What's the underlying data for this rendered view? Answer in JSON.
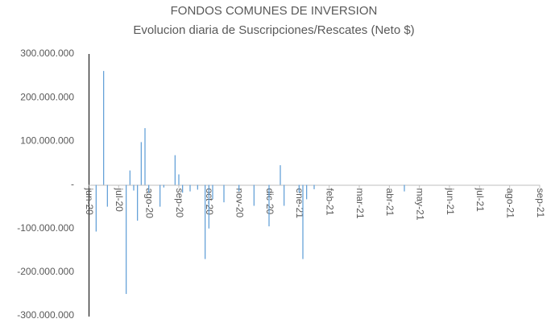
{
  "chart_data": {
    "type": "bar",
    "title": "FONDOS COMUNES DE INVERSION",
    "subtitle": "Evolucion diaria de Suscripciones/Rescates (Neto $)",
    "color": "#5b9bd5",
    "grid": false,
    "ylim": [
      -300000000,
      300000000
    ],
    "yticks": [
      {
        "value": 300000000,
        "label": "300.000.000"
      },
      {
        "value": 200000000,
        "label": "200.000.000"
      },
      {
        "value": 100000000,
        "label": "100.000.000"
      },
      {
        "value": 0,
        "label": "-"
      },
      {
        "value": -100000000,
        "label": "-100.000.000"
      },
      {
        "value": -200000000,
        "label": "-200.000.000"
      },
      {
        "value": -300000000,
        "label": "-300.000.000"
      }
    ],
    "categories": [
      "jun-20",
      null,
      null,
      null,
      null,
      null,
      null,
      null,
      "jul-20",
      null,
      null,
      null,
      null,
      null,
      null,
      null,
      "ago-20",
      null,
      null,
      null,
      null,
      null,
      null,
      null,
      "sep-20",
      null,
      null,
      null,
      null,
      null,
      null,
      null,
      "oct-20",
      null,
      null,
      null,
      null,
      null,
      null,
      null,
      "nov-20",
      null,
      null,
      null,
      null,
      null,
      null,
      null,
      "dic-20",
      null,
      null,
      null,
      null,
      null,
      null,
      null,
      "ene-21",
      null,
      null,
      null,
      null,
      null,
      null,
      null,
      "feb-21",
      null,
      null,
      null,
      null,
      null,
      null,
      null,
      "mar-21",
      null,
      null,
      null,
      null,
      null,
      null,
      null,
      "abr-21",
      null,
      null,
      null,
      null,
      null,
      null,
      null,
      "may-21",
      null,
      null,
      null,
      null,
      null,
      null,
      null,
      "jun-21",
      null,
      null,
      null,
      null,
      null,
      null,
      null,
      "jul-21",
      null,
      null,
      null,
      null,
      null,
      null,
      null,
      "ago-21",
      null,
      null,
      null,
      null,
      null,
      null,
      null,
      "sep-21"
    ],
    "values": [
      null,
      null,
      -107000000,
      null,
      261000000,
      -50000000,
      null,
      null,
      null,
      null,
      -250000000,
      33000000,
      -13000000,
      -82000000,
      98000000,
      130000000,
      -18000000,
      null,
      null,
      -50000000,
      -6000000,
      null,
      null,
      68000000,
      24000000,
      -18000000,
      null,
      -15000000,
      null,
      -11000000,
      null,
      -170000000,
      -100000000,
      -33000000,
      null,
      null,
      -40000000,
      null,
      null,
      null,
      -15000000,
      null,
      null,
      null,
      -48000000,
      null,
      null,
      null,
      -95000000,
      null,
      null,
      45000000,
      -48000000,
      null,
      null,
      null,
      -18000000,
      -170000000,
      -33000000,
      null,
      -10000000,
      null,
      null,
      null,
      null,
      null,
      null,
      null,
      null,
      null,
      null,
      null,
      null,
      null,
      null,
      null,
      null,
      null,
      null,
      null,
      null,
      null,
      null,
      null,
      -15000000,
      null,
      null,
      null,
      null,
      null,
      null,
      null,
      null,
      null,
      null,
      null,
      null,
      null,
      null,
      null,
      null,
      null,
      null,
      null,
      null,
      null,
      null,
      null,
      null,
      null,
      null,
      null,
      null,
      null,
      null,
      null,
      null,
      null,
      null,
      null,
      null
    ]
  }
}
